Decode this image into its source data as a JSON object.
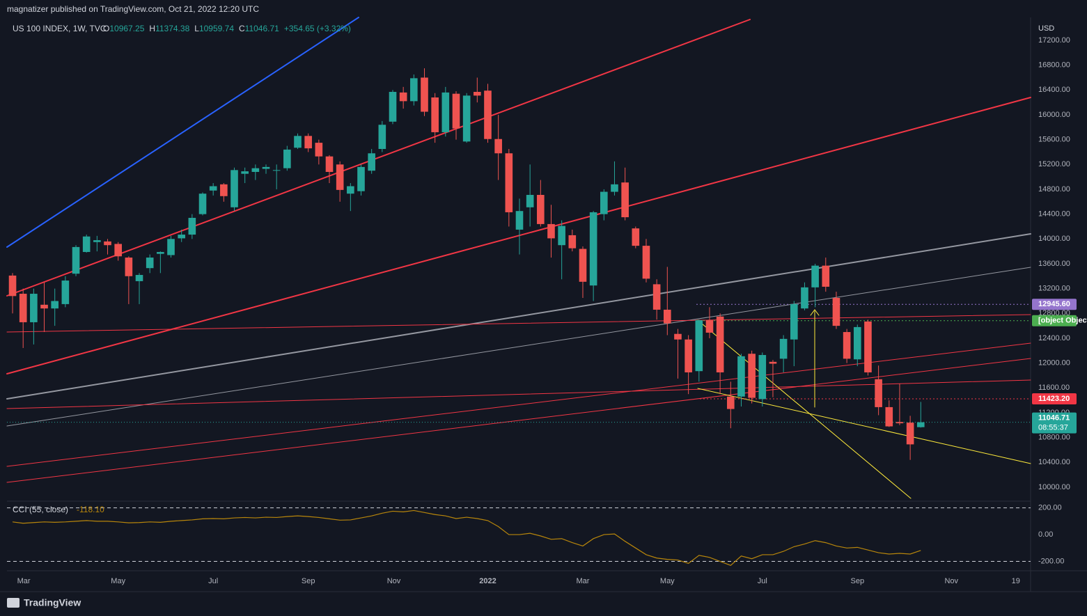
{
  "header": {
    "publisher": "magnatizer published on TradingView.com, Oct 21, 2022 12:20 UTC",
    "brand": "TradingView"
  },
  "chart_data": {
    "type": "candlestick",
    "symbol": "US 100 INDEX, 1W, TVC",
    "ohlc_letters": [
      "O",
      "H",
      "L",
      "C"
    ],
    "change": "+354.65 (+3.32%)",
    "currency": "USD",
    "countdown": "08:55:37",
    "up_color": "#26a69a",
    "down_color": "#ef5350",
    "grid": true,
    "open": [
      13410,
      13117,
      12658,
      12940,
      12880,
      12950,
      13440,
      13790,
      13950,
      13960,
      13920,
      13700,
      13320,
      13530,
      13760,
      13740,
      14010,
      14070,
      14400,
      14780,
      14880,
      14510,
      15050,
      15080,
      15130,
      15100,
      15140,
      15470,
      15660,
      15550,
      15330,
      15200,
      14730,
      14770,
      15100,
      15450,
      15890,
      16360,
      16220,
      16600,
      16280,
      15720,
      16340,
      15570,
      16370,
      16390,
      15610,
      15380,
      14150,
      14510,
      14710,
      14240,
      13900,
      14060,
      13840,
      13250,
      14400,
      14760,
      14910,
      14170,
      13890,
      13270,
      12860,
      12470,
      12380,
      11870,
      12690,
      12750,
      11460,
      11460,
      12150,
      11420,
      12020,
      12070,
      12380,
      12880,
      13220,
      13570,
      13050,
      12500,
      12060,
      12670,
      11740,
      11290,
      11050,
      11040,
      10967.25
    ],
    "high": [
      13450,
      13200,
      13200,
      13300,
      13200,
      13400,
      13900,
      14070,
      14050,
      14000,
      13950,
      13720,
      13450,
      13750,
      13800,
      14050,
      14150,
      14400,
      14750,
      14900,
      14900,
      15150,
      15150,
      15200,
      15200,
      15200,
      15500,
      15700,
      15700,
      15600,
      15350,
      15250,
      14900,
      15200,
      15450,
      15900,
      16400,
      16450,
      16650,
      16750,
      16350,
      16450,
      16380,
      16350,
      16600,
      16500,
      16000,
      15450,
      14650,
      15200,
      14950,
      14550,
      14300,
      14150,
      13880,
      14450,
      14800,
      15250,
      15150,
      14200,
      14000,
      13350,
      13550,
      12550,
      12450,
      12700,
      12900,
      12800,
      11700,
      12150,
      12200,
      12170,
      12050,
      12450,
      13000,
      13300,
      13600,
      13700,
      13150,
      12550,
      12620,
      12700,
      11960,
      11400,
      11670,
      11150,
      11374.38
    ],
    "low": [
      12800,
      12243,
      12300,
      12500,
      12600,
      12900,
      13400,
      13780,
      13800,
      13750,
      13650,
      12950,
      12950,
      13450,
      13450,
      13700,
      13950,
      14000,
      14380,
      14700,
      14600,
      14450,
      14900,
      14950,
      15050,
      14800,
      15100,
      15450,
      15400,
      15200,
      14900,
      14600,
      14450,
      14700,
      15050,
      15400,
      15850,
      16100,
      16150,
      15980,
      15550,
      15650,
      15600,
      15550,
      16200,
      15550,
      14950,
      14200,
      13750,
      14200,
      14200,
      13700,
      13350,
      13800,
      13050,
      13000,
      14300,
      14700,
      14300,
      13850,
      13300,
      12700,
      12450,
      11750,
      11500,
      11700,
      12400,
      11500,
      10950,
      11300,
      11350,
      11300,
      11450,
      11850,
      11950,
      12850,
      12900,
      13150,
      12550,
      12000,
      11950,
      11800,
      11160,
      10970,
      11000,
      10440,
      10959.74
    ],
    "close": [
      13080,
      12658,
      13117,
      12880,
      13000,
      13330,
      13870,
      14040,
      13980,
      13900,
      13720,
      13400,
      13420,
      13700,
      13790,
      14000,
      14070,
      14340,
      14730,
      14850,
      14690,
      15110,
      15090,
      15140,
      15160,
      15110,
      15440,
      15660,
      15460,
      15330,
      15080,
      14790,
      14850,
      15160,
      15380,
      15840,
      16370,
      16220,
      16590,
      16050,
      15720,
      16360,
      15780,
      16310,
      16310,
      15610,
      15380,
      14430,
      14450,
      14710,
      14240,
      14010,
      14210,
      13850,
      13310,
      14430,
      14760,
      14880,
      14350,
      13890,
      13360,
      12860,
      12640,
      12380,
      11850,
      12690,
      12490,
      11850,
      11260,
      12110,
      11440,
      12130,
      11990,
      12390,
      12950,
      13220,
      13570,
      13230,
      12600,
      12070,
      12580,
      11850,
      11290,
      10980,
      11030,
      10690,
      11046.71
    ],
    "ylim": [
      9775,
      17570
    ],
    "yticks": [
      {
        "value": 10000,
        "label": "10000.00"
      },
      {
        "value": 10400,
        "label": "10400.00"
      },
      {
        "value": 10800,
        "label": "10800.00"
      },
      {
        "value": 11200,
        "label": "11200.00"
      },
      {
        "value": 11600,
        "label": "11600.00"
      },
      {
        "value": 12000,
        "label": "12000.00"
      },
      {
        "value": 12400,
        "label": "12400.00"
      },
      {
        "value": 12800,
        "label": "12800.00"
      },
      {
        "value": 13200,
        "label": "13200.00"
      },
      {
        "value": 13600,
        "label": "13600.00"
      },
      {
        "value": 14000,
        "label": "14000.00"
      },
      {
        "value": 14400,
        "label": "14400.00"
      },
      {
        "value": 14800,
        "label": "14800.00"
      },
      {
        "value": 15200,
        "label": "15200.00"
      },
      {
        "value": 15600,
        "label": "15600.00"
      },
      {
        "value": 16000,
        "label": "16000.00"
      },
      {
        "value": 16400,
        "label": "16400.00"
      },
      {
        "value": 16800,
        "label": "16800.00"
      },
      {
        "value": 17200,
        "label": "17200.00"
      }
    ],
    "xlim": [
      -0.53,
      96.4
    ],
    "xticks": [
      {
        "value": 1.06,
        "label": "Mar"
      },
      {
        "value": 10,
        "label": "May"
      },
      {
        "value": 19,
        "label": "Jul"
      },
      {
        "value": 28,
        "label": "Sep"
      },
      {
        "value": 36.1,
        "label": "Nov"
      },
      {
        "value": 45,
        "label": "2022"
      },
      {
        "value": 54,
        "label": "Mar"
      },
      {
        "value": 62,
        "label": "May"
      },
      {
        "value": 71,
        "label": "Jul"
      },
      {
        "value": 80,
        "label": "Sep"
      },
      {
        "value": 88.9,
        "label": "Nov"
      },
      {
        "value": 95,
        "label": "19"
      }
    ],
    "price_labels": [
      {
        "value": 12945.6,
        "label": "12945.60",
        "color": "#9575cd"
      },
      {
        "value": 12682.58,
        "color": "#4caf50"
      },
      {
        "value": 11423.2,
        "label": "11423.20",
        "color": "#f23645"
      }
    ],
    "cci": {
      "title": "CCI (55, close)",
      "color": "#b8860b",
      "value_label": "-118.10",
      "ylim": [
        -270,
        250
      ],
      "yticks": [
        {
          "value": 200,
          "label": "200.00"
        },
        {
          "value": 0,
          "label": "0.00"
        },
        {
          "value": -200,
          "label": "-200.00"
        }
      ],
      "values": [
        95,
        85,
        90,
        95,
        92,
        95,
        100,
        105,
        100,
        100,
        95,
        88,
        90,
        95,
        92,
        100,
        105,
        110,
        118,
        120,
        118,
        125,
        128,
        125,
        130,
        128,
        135,
        140,
        135,
        128,
        118,
        108,
        110,
        125,
        140,
        160,
        175,
        170,
        180,
        165,
        150,
        140,
        120,
        130,
        120,
        105,
        60,
        0,
        0,
        10,
        -10,
        -35,
        -30,
        -60,
        -85,
        -30,
        0,
        5,
        -50,
        -100,
        -150,
        -175,
        -185,
        -190,
        -215,
        -155,
        -170,
        -200,
        -230,
        -160,
        -180,
        -150,
        -150,
        -125,
        -90,
        -70,
        -45,
        -60,
        -85,
        -100,
        -95,
        -115,
        -135,
        -145,
        -140,
        -145,
        -118.1
      ]
    }
  }
}
